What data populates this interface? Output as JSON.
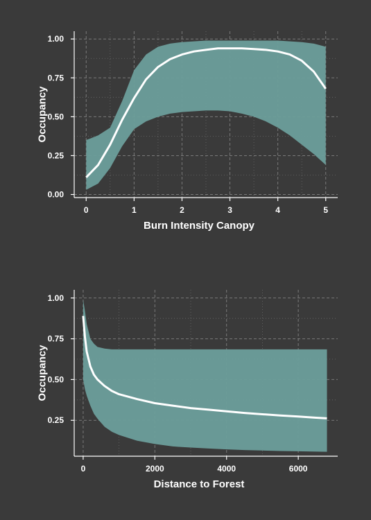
{
  "colors": {
    "background": "#3a3a3a",
    "band": "#6b9e9b",
    "line": "#ffffff",
    "grid": "#8a8a8a",
    "axis": "#ffffff"
  },
  "chart_data": [
    {
      "type": "line",
      "title": "",
      "xlabel": "Burn Intensity Canopy",
      "ylabel": "Occupancy",
      "xlim": [
        -0.25,
        5.25
      ],
      "ylim": [
        -0.02,
        1.05
      ],
      "xticks": [
        0,
        1,
        2,
        3,
        4,
        5
      ],
      "xtick_labels": [
        "0",
        "1",
        "2",
        "3",
        "4",
        "5"
      ],
      "yticks": [
        0,
        0.25,
        0.5,
        0.75,
        1.0
      ],
      "ytick_labels": [
        "0.00",
        "0.25",
        "0.50",
        "0.75",
        "1.00"
      ],
      "grid": true,
      "x": [
        0,
        0.25,
        0.5,
        0.75,
        1.0,
        1.25,
        1.5,
        1.75,
        2.0,
        2.25,
        2.5,
        2.75,
        3.0,
        3.25,
        3.5,
        3.75,
        4.0,
        4.25,
        4.5,
        4.75,
        5.0
      ],
      "series": [
        {
          "mean": [
            0.11,
            0.19,
            0.32,
            0.48,
            0.62,
            0.74,
            0.82,
            0.87,
            0.9,
            0.92,
            0.93,
            0.94,
            0.94,
            0.94,
            0.935,
            0.93,
            0.92,
            0.9,
            0.86,
            0.79,
            0.68
          ],
          "lower": [
            0.03,
            0.07,
            0.17,
            0.31,
            0.42,
            0.47,
            0.5,
            0.52,
            0.53,
            0.535,
            0.54,
            0.54,
            0.535,
            0.52,
            0.5,
            0.47,
            0.43,
            0.38,
            0.32,
            0.26,
            0.19
          ],
          "upper": [
            0.35,
            0.38,
            0.43,
            0.6,
            0.8,
            0.9,
            0.95,
            0.97,
            0.98,
            0.985,
            0.99,
            0.99,
            0.99,
            0.99,
            0.99,
            0.99,
            0.99,
            0.985,
            0.98,
            0.97,
            0.95
          ]
        }
      ]
    },
    {
      "type": "line",
      "title": "",
      "xlabel": "Distance to Forest",
      "ylabel": "Occupancy",
      "xlim": [
        -250,
        7100
      ],
      "ylim": [
        0.03,
        1.05
      ],
      "xticks": [
        0,
        2000,
        4000,
        6000
      ],
      "xtick_labels": [
        "0",
        "2000",
        "4000",
        "6000"
      ],
      "yticks": [
        0.25,
        0.5,
        0.75,
        1.0
      ],
      "ytick_labels": [
        "0.25",
        "0.50",
        "0.75",
        "1.00"
      ],
      "grid": true,
      "x": [
        0,
        50,
        100,
        200,
        300,
        400,
        600,
        800,
        1000,
        1500,
        2000,
        2500,
        3000,
        3500,
        4000,
        4500,
        5000,
        5500,
        6000,
        6500,
        6800
      ],
      "series": [
        {
          "mean": [
            0.89,
            0.76,
            0.67,
            0.58,
            0.53,
            0.5,
            0.46,
            0.43,
            0.41,
            0.38,
            0.355,
            0.34,
            0.325,
            0.315,
            0.305,
            0.295,
            0.287,
            0.28,
            0.273,
            0.266,
            0.262
          ],
          "lower": [
            0.5,
            0.44,
            0.4,
            0.34,
            0.29,
            0.26,
            0.21,
            0.18,
            0.16,
            0.125,
            0.105,
            0.09,
            0.083,
            0.077,
            0.072,
            0.068,
            0.065,
            0.062,
            0.06,
            0.058,
            0.057
          ],
          "upper": [
            0.99,
            0.92,
            0.84,
            0.75,
            0.72,
            0.7,
            0.69,
            0.685,
            0.685,
            0.685,
            0.685,
            0.685,
            0.685,
            0.685,
            0.685,
            0.685,
            0.685,
            0.685,
            0.685,
            0.685,
            0.685
          ]
        }
      ]
    }
  ]
}
